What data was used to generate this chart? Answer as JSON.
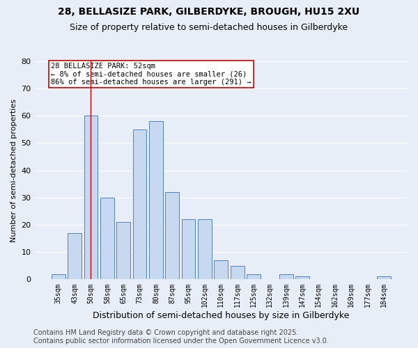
{
  "title": "28, BELLASIZE PARK, GILBERDYKE, BROUGH, HU15 2XU",
  "subtitle": "Size of property relative to semi-detached houses in Gilberdyke",
  "xlabel": "Distribution of semi-detached houses by size in Gilberdyke",
  "ylabel": "Number of semi-detached properties",
  "bin_labels": [
    "35sqm",
    "43sqm",
    "50sqm",
    "58sqm",
    "65sqm",
    "73sqm",
    "80sqm",
    "87sqm",
    "95sqm",
    "102sqm",
    "110sqm",
    "117sqm",
    "125sqm",
    "132sqm",
    "139sqm",
    "147sqm",
    "154sqm",
    "162sqm",
    "169sqm",
    "177sqm",
    "184sqm"
  ],
  "bar_heights": [
    2,
    17,
    60,
    30,
    21,
    55,
    58,
    32,
    22,
    22,
    7,
    5,
    2,
    0,
    2,
    1,
    0,
    0,
    0,
    0,
    1
  ],
  "bar_color": "#c6d9f1",
  "bar_edge_color": "#4f81bd",
  "vline_x": 2,
  "vline_color": "#cc0000",
  "ylim": [
    0,
    80
  ],
  "yticks": [
    0,
    10,
    20,
    30,
    40,
    50,
    60,
    70,
    80
  ],
  "annotation_title": "28 BELLASIZE PARK: 52sqm",
  "annotation_line1": "← 8% of semi-detached houses are smaller (26)",
  "annotation_line2": "86% of semi-detached houses are larger (291) →",
  "annotation_box_color": "#ffffff",
  "annotation_box_edge": "#cc0000",
  "footer1": "Contains HM Land Registry data © Crown copyright and database right 2025.",
  "footer2": "Contains public sector information licensed under the Open Government Licence v3.0.",
  "background_color": "#e8eef8",
  "plot_background": "#e8eef8",
  "grid_color": "#ffffff",
  "title_fontsize": 10,
  "subtitle_fontsize": 9,
  "footer_fontsize": 7
}
